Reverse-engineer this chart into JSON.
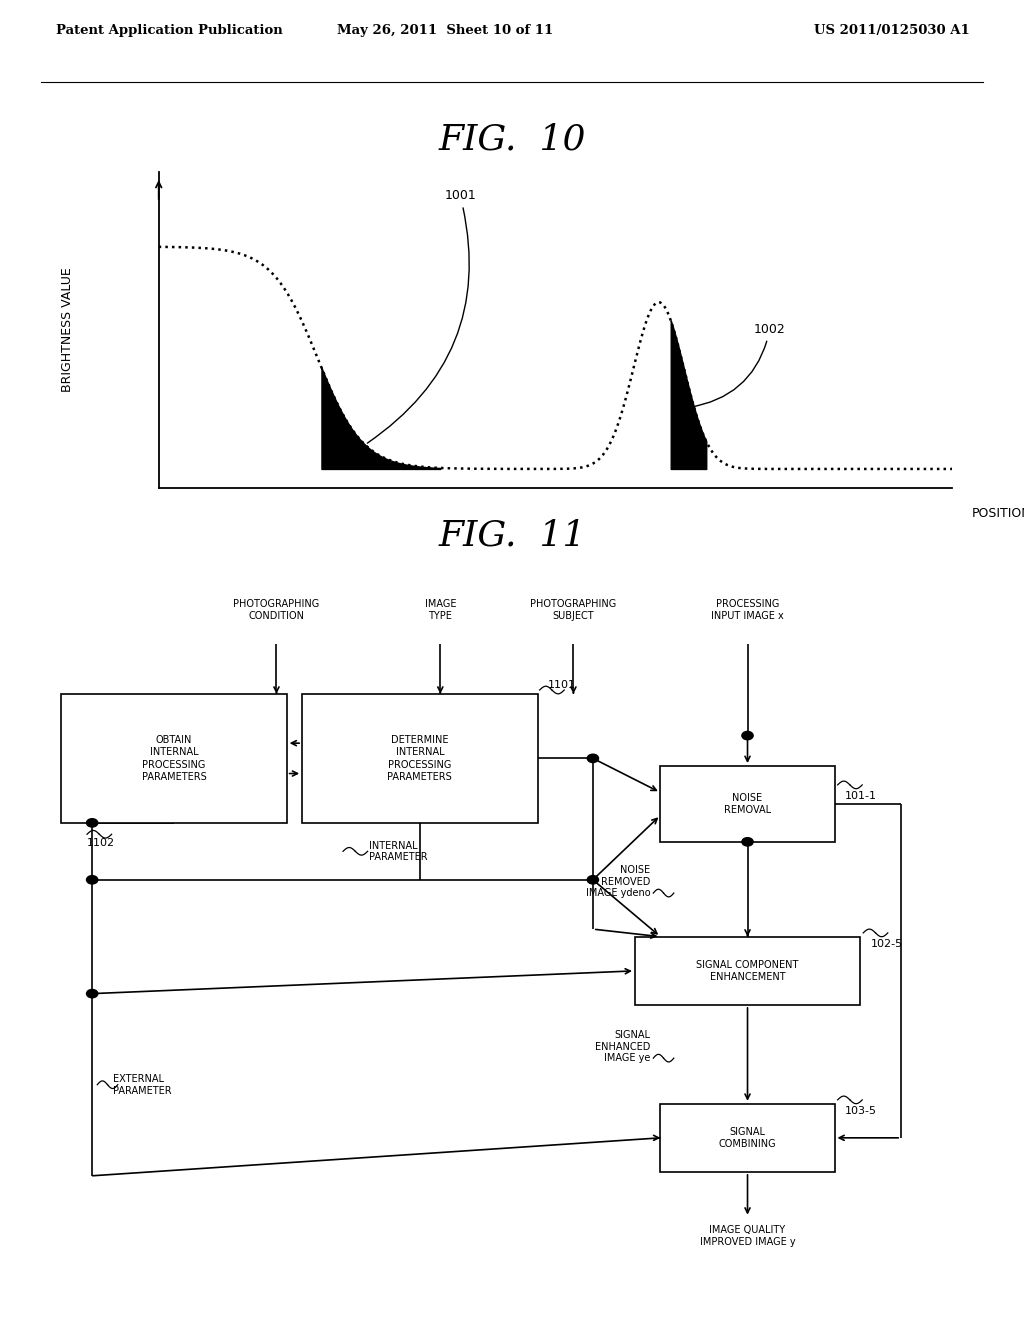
{
  "bg_color": "#ffffff",
  "header_left": "Patent Application Publication",
  "header_mid": "May 26, 2011  Sheet 10 of 11",
  "header_right": "US 2011/0125030 A1",
  "fig10_title": "FIG.  10",
  "fig11_title": "FIG.  11",
  "ylabel": "BRIGHTNESS VALUE",
  "xlabel": "POSITION",
  "label_1001": "1001",
  "label_1002": "1002",
  "box_obtain": "OBTAIN\nINTERNAL\nPROCESSING\nPARAMETERS",
  "box_determine": "DETERMINE\nINTERNAL\nPROCESSING\nPARAMETERS",
  "box_noise": "NOISE\nREMOVAL",
  "box_signal_comp": "SIGNAL COMPONENT\nENHANCEMENT",
  "box_signal_comb": "SIGNAL\nCOMBINING",
  "label_1101": "1101",
  "label_1102": "1102",
  "label_101_1": "101-1",
  "label_102_5": "102-5",
  "label_103_5": "103-5",
  "text_photo_cond": "PHOTOGRAPHING\nCONDITION",
  "text_image_type": "IMAGE\nTYPE",
  "text_photo_subj": "PHOTOGRAPHING\nSUBJECT",
  "text_proc_input": "PROCESSING\nINPUT IMAGE x",
  "text_internal_param": "INTERNAL\nPARAMETER",
  "text_noise_removed": "NOISE\nREMOVED\nIMAGE ydeno",
  "text_external_param": "EXTERNAL\nPARAMETER",
  "text_signal_enh": "SIGNAL\nENHANCED\nIMAGE ye",
  "text_output": "IMAGE QUALITY\nIMPROVED IMAGE y"
}
